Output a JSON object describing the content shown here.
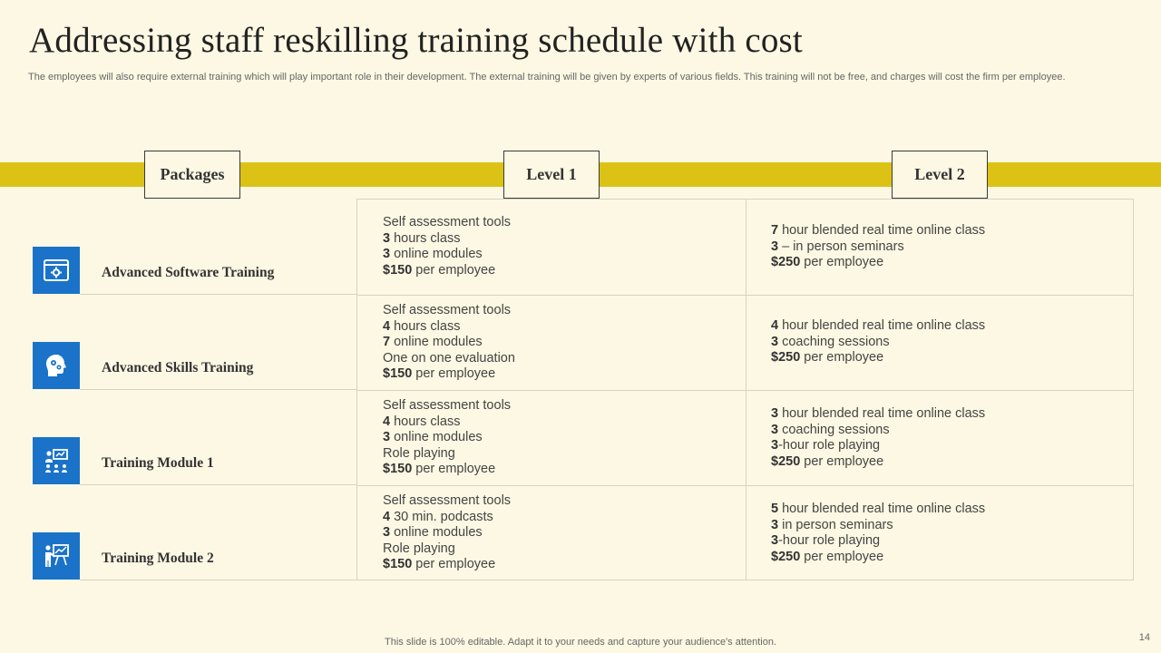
{
  "title": "Addressing staff reskilling training schedule with cost",
  "subtitle": "The employees will also require external training which will play important role in their development. The external training will be given by experts of various fields. This training will not be free, and charges will cost the firm per employee.",
  "headers": {
    "packages": "Packages",
    "level1": "Level 1",
    "level2": "Level 2"
  },
  "packages": [
    {
      "label": "Advanced Software Training",
      "icon": "browser-settings-icon"
    },
    {
      "label": "Advanced Skills Training",
      "icon": "brain-gears-icon"
    },
    {
      "label": "Training Module 1",
      "icon": "presenter-group-icon"
    },
    {
      "label": "Training Module 2",
      "icon": "presentation-board-icon"
    }
  ],
  "level1": [
    [
      {
        "num": "",
        "text": "Self assessment tools"
      },
      {
        "num": "3",
        "text": " hours class"
      },
      {
        "num": "3",
        "text": " online modules"
      },
      {
        "num": "$150",
        "text": " per employee"
      }
    ],
    [
      {
        "num": "",
        "text": "Self assessment tools"
      },
      {
        "num": "4",
        "text": " hours class"
      },
      {
        "num": "7",
        "text": " online modules"
      },
      {
        "num": "",
        "text": "One on one evaluation"
      },
      {
        "num": "$150",
        "text": " per employee"
      }
    ],
    [
      {
        "num": "",
        "text": "Self assessment tools"
      },
      {
        "num": "4",
        "text": " hours class"
      },
      {
        "num": "3",
        "text": " online modules"
      },
      {
        "num": "",
        "text": "Role playing"
      },
      {
        "num": "$150",
        "text": " per employee"
      }
    ],
    [
      {
        "num": "",
        "text": "Self assessment tools"
      },
      {
        "num": "4",
        "text": " 30 min. podcasts"
      },
      {
        "num": "3",
        "text": " online modules"
      },
      {
        "num": "",
        "text": "Role playing"
      },
      {
        "num": "$150",
        "text": " per employee"
      }
    ]
  ],
  "level2": [
    [
      {
        "num": "7",
        "text": " hour blended  real time online class"
      },
      {
        "num": "3",
        "text": " – in person seminars"
      },
      {
        "num": "$250",
        "text": " per employee"
      }
    ],
    [
      {
        "num": "4",
        "text": " hour blended  real time online class"
      },
      {
        "num": "3",
        "text": " coaching sessions"
      },
      {
        "num": "$250",
        "text": " per employee"
      }
    ],
    [
      {
        "num": "3",
        "text": " hour blended  real time online class"
      },
      {
        "num": "3",
        "text": " coaching sessions"
      },
      {
        "num": "3",
        "text": "-hour role playing"
      },
      {
        "num": "$250",
        "text": " per employee"
      }
    ],
    [
      {
        "num": "5",
        "text": " hour blended  real time online class"
      },
      {
        "num": "3",
        "text": " in person seminars"
      },
      {
        "num": "3",
        "text": "-hour role playing"
      },
      {
        "num": "$250",
        "text": " per employee"
      }
    ]
  ],
  "footer": "This slide is 100% editable. Adapt it to your needs and capture your audience's attention.",
  "page_number": "14",
  "colors": {
    "background": "#fcf8e3",
    "band": "#ddc216",
    "icon_bg": "#1a73c9"
  }
}
